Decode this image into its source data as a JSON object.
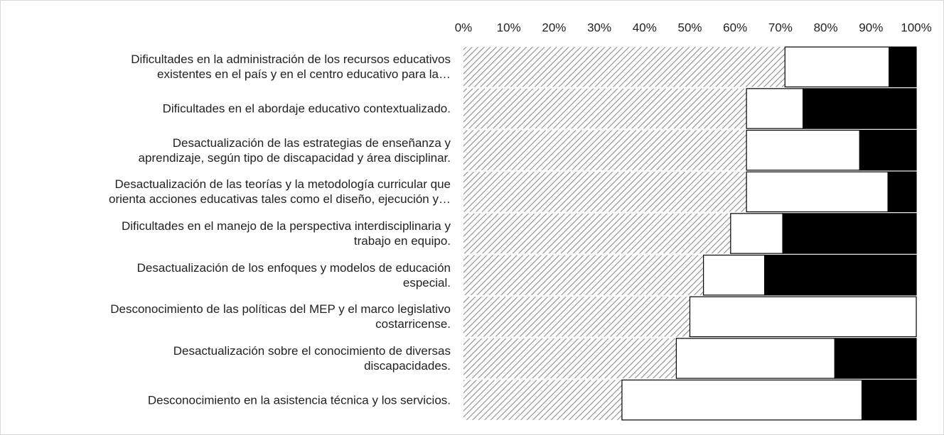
{
  "chart_data": {
    "type": "stacked-barh",
    "categories": [
      "Dificultades en la administración de los recursos educativos\nexistentes en el país y en el centro educativo para la…",
      "Dificultades en el abordaje educativo contextualizado.",
      "Desactualización de las estrategias de enseñanza y\naprendizaje, según tipo de discapacidad y área disciplinar.",
      "Desactualización de las teorías y la metodología curricular que\norienta acciones educativas tales como el diseño, ejecución y…",
      "Dificultades en el manejo de la perspectiva interdisciplinaria y\ntrabajo en equipo.",
      "Desactualización de los enfoques y modelos de educación\nespecial.",
      "Desconocimiento de las políticas del MEP y el marco legislativo\ncostarricense.",
      "Desactualización sobre el conocimiento de diversas\ndiscapacidades.",
      "Desconocimiento en la asistencia técnica y los servicios."
    ],
    "series": [
      {
        "color": "#8c8c8c",
        "pattern": "hatch",
        "values": [
          71,
          62.5,
          62.5,
          62.5,
          59,
          53,
          50,
          47,
          35
        ]
      },
      {
        "color": "#ffffff",
        "values": [
          23,
          12.5,
          25,
          31.25,
          11.5,
          13.5,
          50,
          35,
          53
        ]
      },
      {
        "color": "#000000",
        "values": [
          6,
          25,
          12.5,
          6.25,
          29.5,
          33.5,
          0,
          18,
          12
        ]
      }
    ],
    "xlim": [
      0,
      100
    ],
    "xticks": [
      {
        "value": 0,
        "label": "0%"
      },
      {
        "value": 10,
        "label": "10%"
      },
      {
        "value": 20,
        "label": "20%"
      },
      {
        "value": 30,
        "label": "30%"
      },
      {
        "value": 40,
        "label": "40%"
      },
      {
        "value": 50,
        "label": "50%"
      },
      {
        "value": 60,
        "label": "60%"
      },
      {
        "value": 70,
        "label": "70%"
      },
      {
        "value": 80,
        "label": "80%"
      },
      {
        "value": 90,
        "label": "90%"
      },
      {
        "value": 100,
        "label": "100%"
      }
    ]
  }
}
